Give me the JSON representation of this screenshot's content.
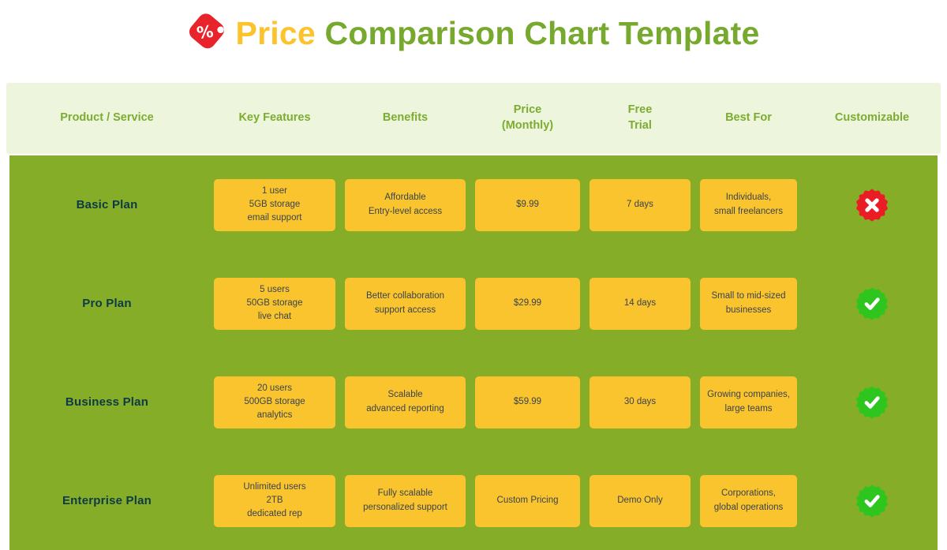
{
  "title": {
    "word_highlight": "Price",
    "word_rest": "Comparison Chart Template",
    "highlight_color": "#FCC32D",
    "rest_color": "#76A92E",
    "icon": "price-tag-icon"
  },
  "colors": {
    "header_bg": "#EDF6DD",
    "header_text": "#7CAC30",
    "body_bg": "#85AD27",
    "card_bg": "#FAC42E",
    "plan_text": "#0E3A46",
    "card_text": "#3A434B",
    "badge_yes": "#2FC51F",
    "badge_no": "#EA1C24",
    "tag_red": "#E9232B"
  },
  "table": {
    "headers": [
      "Product / Service",
      "Key Features",
      "Benefits",
      "Price\n(Monthly)",
      "Free\nTrial",
      "Best For",
      "Customizable"
    ],
    "rows": [
      {
        "plan": "Basic Plan",
        "key_features": "1 user\n5GB storage\nemail support",
        "benefits": "Affordable\nEntry-level access",
        "price": "$9.99",
        "free_trial": "7 days",
        "best_for": "Individuals,\nsmall freelancers",
        "customizable": false
      },
      {
        "plan": "Pro Plan",
        "key_features": "5 users\n50GB storage\nlive chat",
        "benefits": "Better collaboration\nsupport access",
        "price": "$29.99",
        "free_trial": "14 days",
        "best_for": "Small to mid-sized\nbusinesses",
        "customizable": true
      },
      {
        "plan": "Business Plan",
        "key_features": "20 users\n500GB storage\nanalytics",
        "benefits": "Scalable\nadvanced reporting",
        "price": "$59.99",
        "free_trial": "30 days",
        "best_for": "Growing companies,\nlarge teams",
        "customizable": true
      },
      {
        "plan": "Enterprise Plan",
        "key_features": "Unlimited users\n2TB\ndedicated rep",
        "benefits": "Fully scalable\npersonalized support",
        "price": "Custom Pricing",
        "free_trial": "Demo Only",
        "best_for": "Corporations,\nglobal operations",
        "customizable": true
      }
    ]
  },
  "chart_data": {
    "type": "table",
    "title": "Price Comparison Chart Template",
    "columns": [
      "Product / Service",
      "Key Features",
      "Benefits",
      "Price (Monthly)",
      "Free Trial",
      "Best For",
      "Customizable"
    ],
    "rows": [
      [
        "Basic Plan",
        "1 user; 5GB storage; email support",
        "Affordable; Entry-level access",
        "$9.99",
        "7 days",
        "Individuals, small freelancers",
        "no"
      ],
      [
        "Pro Plan",
        "5 users; 50GB storage; live chat",
        "Better collaboration; support access",
        "$29.99",
        "14 days",
        "Small to mid-sized businesses",
        "yes"
      ],
      [
        "Business Plan",
        "20 users; 500GB storage; analytics",
        "Scalable; advanced reporting",
        "$59.99",
        "30 days",
        "Growing companies, large teams",
        "yes"
      ],
      [
        "Enterprise Plan",
        "Unlimited users; 2TB; dedicated rep",
        "Fully scalable; personalized support",
        "Custom Pricing",
        "Demo Only",
        "Corporations, global operations",
        "yes"
      ]
    ]
  }
}
